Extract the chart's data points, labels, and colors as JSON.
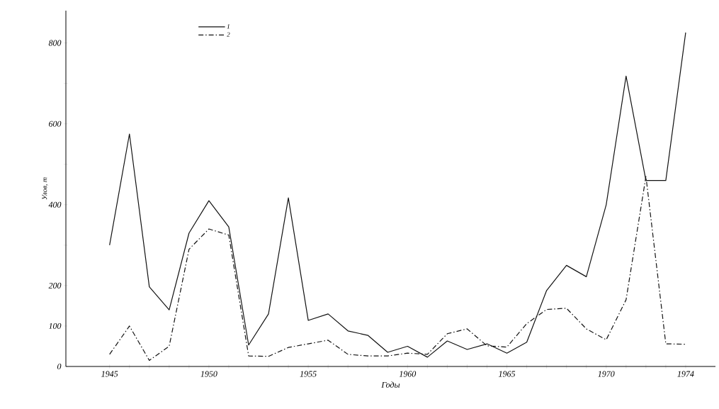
{
  "chart_data": {
    "type": "line",
    "xlabel": "Годы",
    "ylabel": "Улов, т",
    "x": [
      1945,
      1946,
      1947,
      1948,
      1949,
      1950,
      1951,
      1952,
      1953,
      1954,
      1955,
      1956,
      1957,
      1958,
      1959,
      1960,
      1961,
      1962,
      1963,
      1964,
      1965,
      1966,
      1967,
      1968,
      1969,
      1970,
      1971,
      1972,
      1973,
      1974
    ],
    "series": [
      {
        "name": "1",
        "color": "#111111",
        "line_style": "solid",
        "values": [
          300,
          575,
          197,
          140,
          330,
          410,
          345,
          53,
          130,
          417,
          114,
          130,
          88,
          77,
          35,
          50,
          23,
          63,
          42,
          56,
          33,
          60,
          188,
          250,
          222,
          400,
          718,
          460,
          460,
          826
        ]
      },
      {
        "name": "2",
        "color": "#111111",
        "line_style": "dashdot",
        "values": [
          30,
          100,
          15,
          50,
          290,
          340,
          325,
          26,
          25,
          47,
          56,
          65,
          30,
          26,
          26,
          33,
          30,
          81,
          93,
          51,
          48,
          106,
          141,
          144,
          93,
          66,
          165,
          470,
          56,
          55
        ]
      }
    ],
    "xlim": [
      1942.8,
      1975.5
    ],
    "ylim": [
      0,
      880
    ],
    "xticks": [
      1945,
      {
        "value": 1946,
        "label": null
      },
      {
        "value": 1947,
        "label": null
      },
      {
        "value": 1948,
        "label": null
      },
      {
        "value": 1949,
        "label": null
      },
      1950,
      {
        "value": 1951,
        "label": null
      },
      {
        "value": 1952,
        "label": null
      },
      {
        "value": 1953,
        "label": null
      },
      {
        "value": 1954,
        "label": null
      },
      1955,
      {
        "value": 1956,
        "label": null
      },
      {
        "value": 1957,
        "label": null
      },
      {
        "value": 1958,
        "label": null
      },
      {
        "value": 1959,
        "label": null
      },
      1960,
      {
        "value": 1961,
        "label": null
      },
      {
        "value": 1962,
        "label": null
      },
      {
        "value": 1963,
        "label": null
      },
      {
        "value": 1964,
        "label": null
      },
      1965,
      {
        "value": 1966,
        "label": null
      },
      {
        "value": 1967,
        "label": null
      },
      {
        "value": 1968,
        "label": null
      },
      {
        "value": 1969,
        "label": null
      },
      1970,
      {
        "value": 1971,
        "label": null
      },
      {
        "value": 1972,
        "label": null
      },
      {
        "value": 1973,
        "label": null
      },
      1974
    ],
    "yticks": [
      0,
      100,
      200,
      {
        "value": 300,
        "label": null
      },
      400,
      {
        "value": 500,
        "label": null
      },
      600,
      {
        "value": 700,
        "label": null
      },
      800
    ],
    "grid": false,
    "legend": "top left",
    "marker": "none"
  }
}
